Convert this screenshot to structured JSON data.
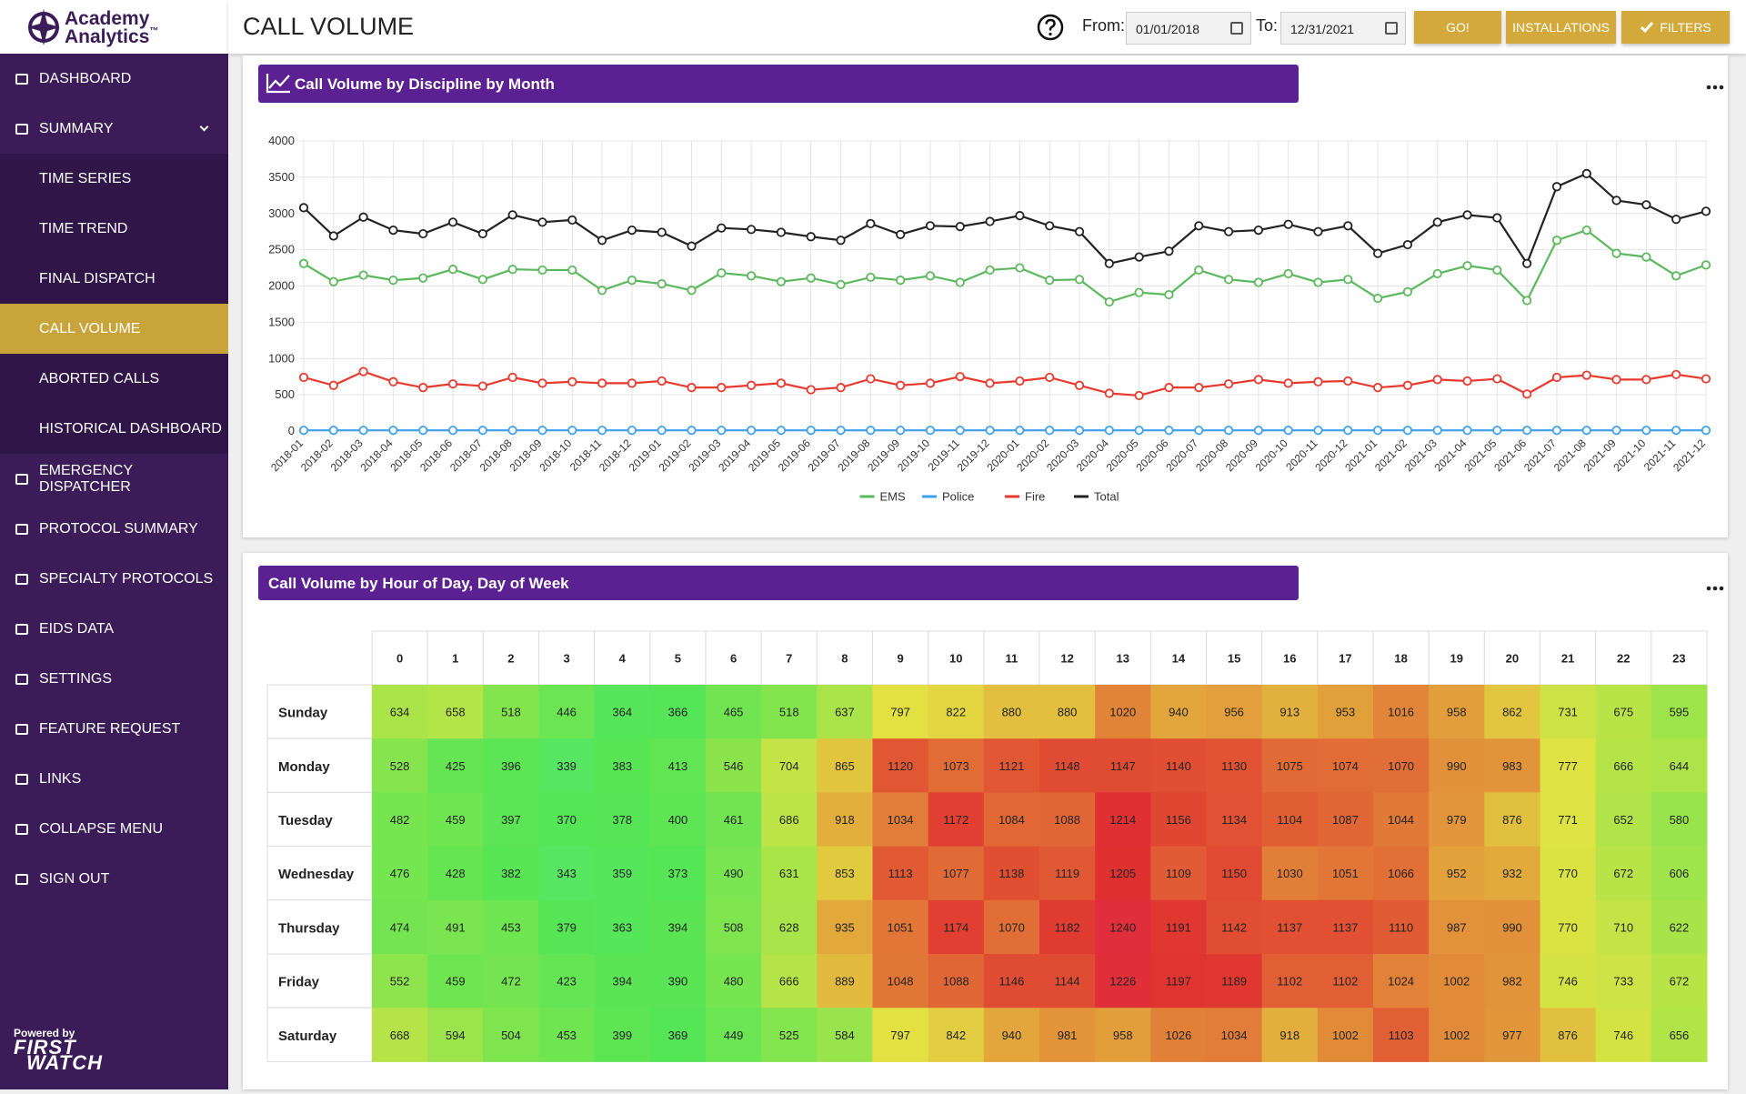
{
  "header": {
    "title": "CALL VOLUME",
    "from_label": "From:",
    "from_date": "01/01/2018",
    "to_label": "To:",
    "to_date": "12/31/2021",
    "buttons": [
      "GO!",
      "INSTALLATIONS",
      "FILTERS"
    ]
  },
  "sidebar": {
    "logo": {
      "line1": "Academy",
      "line2": "Analytics",
      "mark": "™"
    },
    "items": [
      {
        "label": "DASHBOARD"
      },
      {
        "label": "SUMMARY",
        "children": [
          {
            "label": "TIME SERIES"
          },
          {
            "label": "TIME TREND"
          },
          {
            "label": "FINAL DISPATCH"
          },
          {
            "label": "CALL VOLUME",
            "active": true
          },
          {
            "label": "ABORTED CALLS"
          },
          {
            "label": "HISTORICAL DASHBOARD"
          }
        ]
      },
      {
        "label": "EMERGENCY DISPATCHER"
      },
      {
        "label": "PROTOCOL SUMMARY"
      },
      {
        "label": "SPECIALTY PROTOCOLS"
      },
      {
        "label": "EIDS DATA"
      },
      {
        "label": "SETTINGS"
      },
      {
        "label": "FEATURE REQUEST"
      },
      {
        "label": "LINKS"
      },
      {
        "label": "COLLAPSE MENU"
      },
      {
        "label": "SIGN OUT"
      }
    ],
    "powered_by": "Powered by",
    "brand": [
      "FIRST",
      "WATCH"
    ]
  },
  "chart_data": [
    {
      "type": "line",
      "title": "Call Volume by Discipline by Month",
      "categories": [
        "2018-01",
        "2018-02",
        "2018-03",
        "2018-04",
        "2018-05",
        "2018-06",
        "2018-07",
        "2018-08",
        "2018-09",
        "2018-10",
        "2018-11",
        "2018-12",
        "2019-01",
        "2019-02",
        "2019-03",
        "2019-04",
        "2019-05",
        "2019-06",
        "2019-07",
        "2019-08",
        "2019-09",
        "2019-10",
        "2019-11",
        "2019-12",
        "2020-01",
        "2020-02",
        "2020-03",
        "2020-04",
        "2020-05",
        "2020-06",
        "2020-07",
        "2020-08",
        "2020-09",
        "2020-10",
        "2020-11",
        "2020-12",
        "2021-01",
        "2021-02",
        "2021-03",
        "2021-04",
        "2021-05",
        "2021-06",
        "2021-07",
        "2021-08",
        "2021-09",
        "2021-10",
        "2021-11",
        "2021-12"
      ],
      "series": [
        {
          "name": "EMS",
          "color": "#5cb85c",
          "values": [
            2310,
            2060,
            2150,
            2080,
            2110,
            2230,
            2090,
            2230,
            2220,
            2220,
            1940,
            2080,
            2030,
            1940,
            2180,
            2140,
            2060,
            2110,
            2020,
            2120,
            2080,
            2140,
            2050,
            2220,
            2250,
            2080,
            2090,
            1780,
            1910,
            1880,
            2220,
            2090,
            2050,
            2170,
            2050,
            2090,
            1830,
            1920,
            2170,
            2280,
            2220,
            1800,
            2630,
            2770,
            2450,
            2400,
            2140,
            2290
          ]
        },
        {
          "name": "Police",
          "color": "#3ea1ec",
          "values": [
            10,
            10,
            10,
            10,
            10,
            10,
            10,
            10,
            10,
            10,
            10,
            10,
            10,
            10,
            10,
            10,
            10,
            10,
            10,
            10,
            10,
            10,
            10,
            10,
            10,
            10,
            10,
            10,
            10,
            10,
            10,
            10,
            10,
            10,
            10,
            10,
            10,
            10,
            10,
            10,
            10,
            10,
            10,
            10,
            10,
            10,
            10,
            10
          ]
        },
        {
          "name": "Fire",
          "color": "#e8392f",
          "values": [
            740,
            630,
            820,
            680,
            600,
            650,
            620,
            740,
            660,
            680,
            660,
            660,
            690,
            600,
            600,
            630,
            660,
            570,
            600,
            720,
            630,
            660,
            750,
            660,
            690,
            740,
            630,
            520,
            490,
            600,
            600,
            650,
            710,
            660,
            680,
            690,
            600,
            630,
            710,
            690,
            720,
            510,
            740,
            770,
            710,
            710,
            780,
            720
          ]
        },
        {
          "name": "Total",
          "color": "#222222",
          "values": [
            3080,
            2690,
            2950,
            2770,
            2720,
            2880,
            2720,
            2980,
            2880,
            2910,
            2630,
            2770,
            2740,
            2550,
            2800,
            2780,
            2740,
            2680,
            2630,
            2860,
            2710,
            2830,
            2820,
            2890,
            2970,
            2830,
            2750,
            2310,
            2400,
            2480,
            2830,
            2750,
            2770,
            2850,
            2750,
            2830,
            2450,
            2570,
            2880,
            2980,
            2940,
            2310,
            3370,
            3550,
            3180,
            3120,
            2920,
            3030
          ]
        }
      ],
      "ylim": [
        0,
        4000
      ],
      "yticks": [
        0,
        500,
        1000,
        1500,
        2000,
        2500,
        3000,
        3500,
        4000
      ],
      "grid": true,
      "legend": "bottom"
    },
    {
      "type": "heatmap",
      "title": "Call Volume by Hour of Day, Day of Week",
      "x": [
        0,
        1,
        2,
        3,
        4,
        5,
        6,
        7,
        8,
        9,
        10,
        11,
        12,
        13,
        14,
        15,
        16,
        17,
        18,
        19,
        20,
        21,
        22,
        23
      ],
      "y": [
        "Sunday",
        "Monday",
        "Tuesday",
        "Wednesday",
        "Thursday",
        "Friday",
        "Saturday"
      ],
      "values": [
        [
          634,
          658,
          518,
          446,
          364,
          366,
          465,
          518,
          637,
          797,
          822,
          880,
          880,
          1020,
          940,
          956,
          913,
          953,
          1016,
          958,
          862,
          731,
          675,
          595
        ],
        [
          528,
          425,
          396,
          339,
          383,
          413,
          546,
          704,
          865,
          1120,
          1073,
          1121,
          1148,
          1147,
          1140,
          1130,
          1075,
          1074,
          1070,
          990,
          983,
          777,
          666,
          644
        ],
        [
          482,
          459,
          397,
          370,
          378,
          400,
          461,
          686,
          918,
          1034,
          1172,
          1084,
          1088,
          1214,
          1156,
          1134,
          1104,
          1087,
          1044,
          979,
          876,
          771,
          652,
          580
        ],
        [
          476,
          428,
          382,
          343,
          359,
          373,
          490,
          631,
          853,
          1113,
          1077,
          1138,
          1119,
          1205,
          1109,
          1150,
          1030,
          1051,
          1066,
          952,
          932,
          770,
          672,
          606
        ],
        [
          474,
          491,
          453,
          379,
          363,
          394,
          508,
          628,
          935,
          1051,
          1174,
          1070,
          1182,
          1240,
          1191,
          1142,
          1137,
          1137,
          1110,
          987,
          990,
          770,
          710,
          622
        ],
        [
          552,
          459,
          472,
          423,
          394,
          390,
          480,
          666,
          889,
          1048,
          1088,
          1146,
          1144,
          1226,
          1197,
          1189,
          1102,
          1102,
          1024,
          1002,
          982,
          746,
          733,
          672
        ],
        [
          668,
          594,
          504,
          453,
          399,
          369,
          449,
          525,
          584,
          797,
          842,
          940,
          981,
          958,
          1026,
          1034,
          918,
          1002,
          1103,
          1002,
          977,
          876,
          746,
          656
        ]
      ]
    }
  ]
}
